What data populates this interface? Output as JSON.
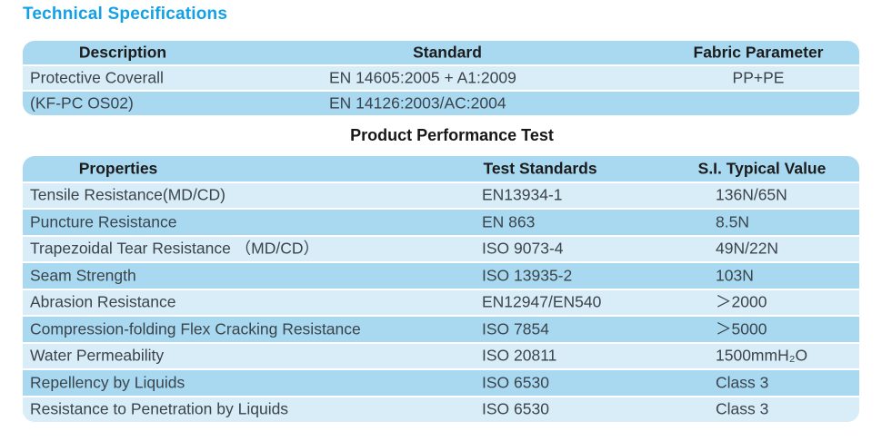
{
  "titles": {
    "specifications": "Technical Specifications",
    "performance": "Product Performance Test"
  },
  "colors": {
    "accent_blue": "#13A0E6",
    "row_medium_blue": "#A8D9F1",
    "row_light_blue": "#D9EDF8",
    "header_text": "#1C1C1C",
    "body_text": "#3C444B",
    "background": "#FFFFFF"
  },
  "spec_table": {
    "headers": [
      "Description",
      "Standard",
      "Fabric Parameter"
    ],
    "rows": [
      {
        "description": "Protective Coverall",
        "standard": "EN 14605:2005 + A1:2009",
        "fabric": "PP+PE"
      },
      {
        "description": "(KF-PC OS02)",
        "standard": "EN 14126:2003/AC:2004",
        "fabric": ""
      }
    ]
  },
  "performance_table": {
    "headers": [
      "Properties",
      "Test Standards",
      "S.I. Typical Value"
    ],
    "rows": [
      {
        "property": "Tensile Resistance(MD/CD)",
        "standard": "EN13934-1",
        "value": "136N/65N"
      },
      {
        "property": "Puncture Resistance",
        "standard": "EN 863",
        "value": "8.5N"
      },
      {
        "property": "Trapezoidal Tear Resistance （MD/CD）",
        "standard": "ISO 9073-4",
        "value": "49N/22N"
      },
      {
        "property": "Seam Strength",
        "standard": "ISO 13935-2",
        "value": "103N"
      },
      {
        "property": "Abrasion Resistance",
        "standard": "EN12947/EN540",
        "value": "＞2000"
      },
      {
        "property": "Compression-folding Flex Cracking Resistance",
        "standard": "ISO 7854",
        "value": "＞5000"
      },
      {
        "property": "Water Permeability",
        "standard": "ISO 20811",
        "value": "1500mmH₂O"
      },
      {
        "property": "Repellency by Liquids",
        "standard": "ISO 6530",
        "value": "Class 3"
      },
      {
        "property": "Resistance to Penetration by Liquids",
        "standard": "ISO 6530",
        "value": "Class 3"
      }
    ]
  }
}
